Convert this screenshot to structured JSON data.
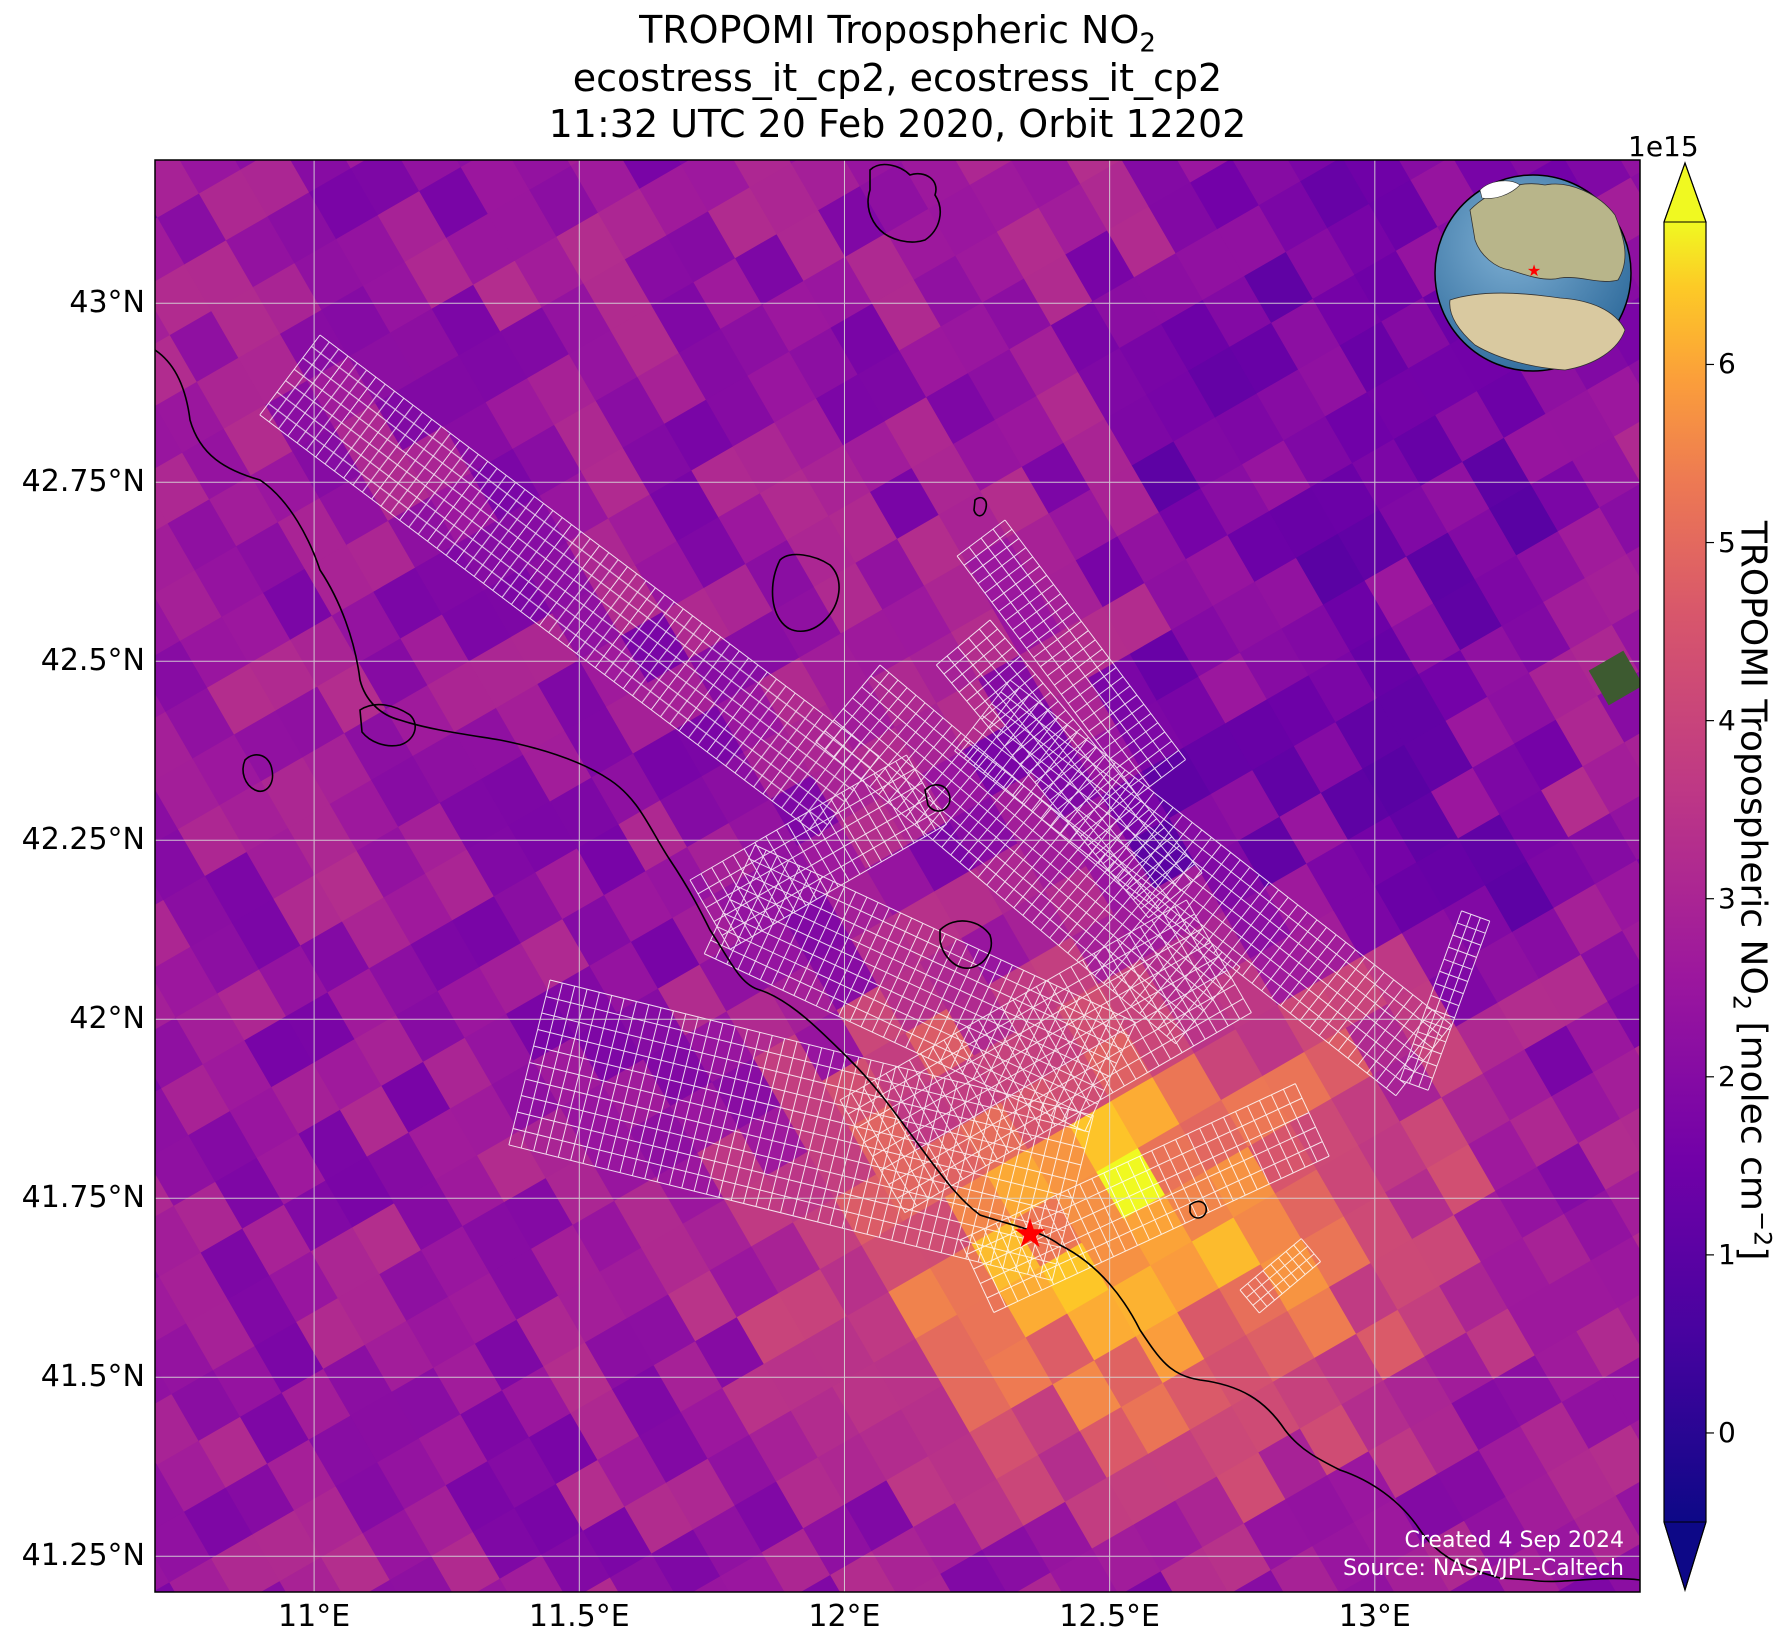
{
  "title": {
    "line1_main": "TROPOMI Tropospheric NO",
    "line1_sub": "2",
    "line2": "ecostress_it_cp2, ecostress_it_cp2",
    "line3": "11:32 UTC 20 Feb 2020, Orbit 12202"
  },
  "axes": {
    "lat_ticks": [
      "43°N",
      "42.75°N",
      "42.5°N",
      "42.25°N",
      "42°N",
      "41.75°N",
      "41.5°N",
      "41.25°N"
    ],
    "lat_values": [
      43,
      42.75,
      42.5,
      42.25,
      42,
      41.75,
      41.5,
      41.25
    ],
    "lon_ticks": [
      "11°E",
      "11.5°E",
      "12°E",
      "12.5°E",
      "13°E"
    ],
    "lon_values": [
      11,
      11.5,
      12,
      12.5,
      13
    ],
    "lon_range": [
      10.7,
      13.5
    ],
    "lat_range": [
      41.2,
      43.2
    ],
    "grid": true
  },
  "colorbar": {
    "label_main": "TROPOMI Tropospheric NO",
    "label_sub": "2",
    "label_units": " [molec cm",
    "label_exp": "−2",
    "label_close": "]",
    "multiplier": "1e15",
    "ticks": [
      "0",
      "1",
      "2",
      "3",
      "4",
      "5",
      "6"
    ],
    "tick_values": [
      0,
      1,
      2,
      3,
      4,
      5,
      6
    ],
    "range": [
      -0.5,
      6.8
    ],
    "colormap": "plasma",
    "extend": "both"
  },
  "marker": {
    "type": "red star",
    "lon": 12.35,
    "lat": 41.7,
    "color": "#ff0000"
  },
  "inset": {
    "type": "globe",
    "marker_color": "#ff0000"
  },
  "credit": {
    "line1": "Created 4 Sep 2024",
    "line2": "Source: NASA/JPL-Caltech"
  }
}
